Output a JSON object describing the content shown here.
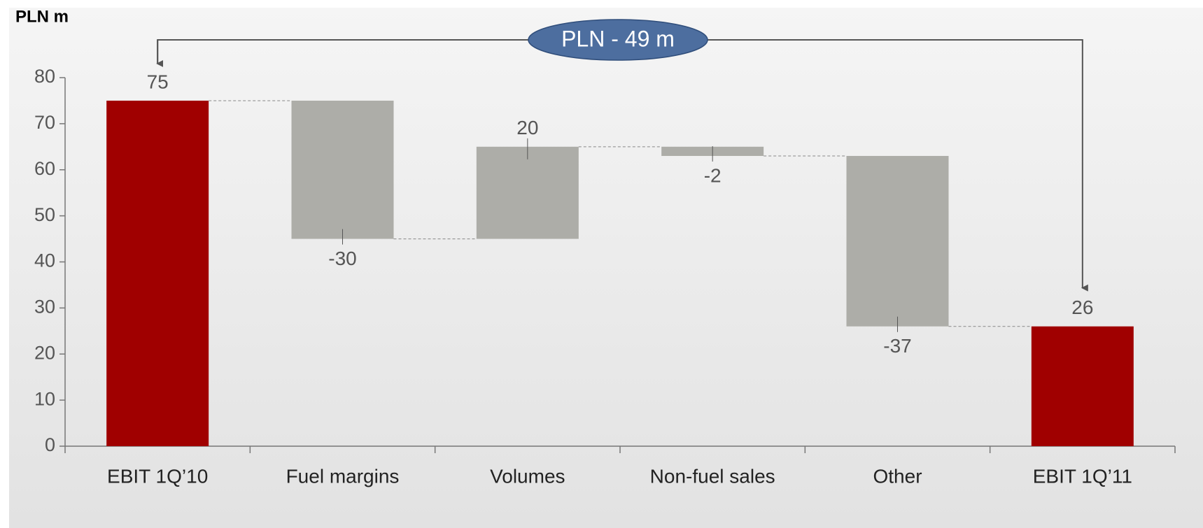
{
  "chart_data": {
    "type": "waterfall",
    "y_axis_label": "PLN m",
    "annotation": "PLN - 49 m",
    "categories": [
      "EBIT 1Q’10",
      "Fuel margins",
      "Volumes",
      "Non-fuel sales",
      "Other",
      "EBIT 1Q’11"
    ],
    "values": [
      75,
      -30,
      20,
      -2,
      -37,
      26
    ],
    "colors": [
      "#a00000",
      "#adada8",
      "#adada8",
      "#adada8",
      "#adada8",
      "#a00000"
    ],
    "ylim": [
      0,
      80
    ],
    "yticks": [
      0,
      10,
      20,
      30,
      40,
      50,
      60,
      70,
      80
    ]
  }
}
